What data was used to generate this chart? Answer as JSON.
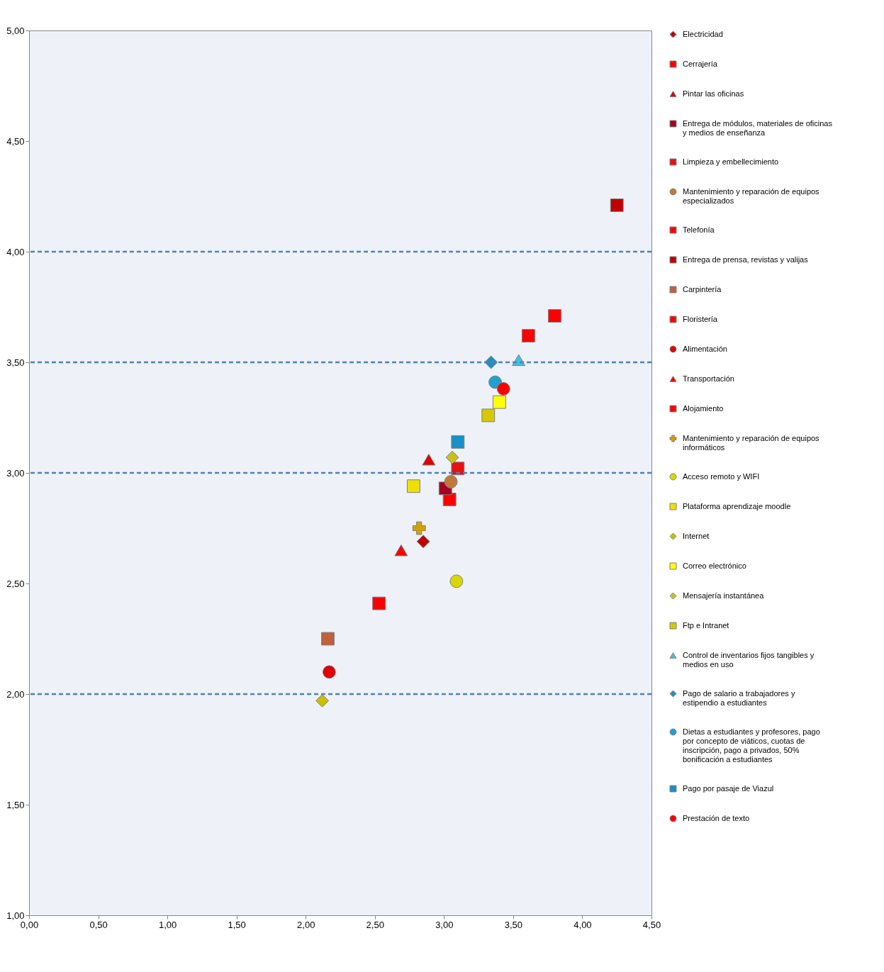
{
  "chart_data": {
    "type": "scatter",
    "xlim": [
      0,
      4.5
    ],
    "ylim": [
      1,
      5
    ],
    "xticks": [
      {
        "value": 0,
        "label": "0,00"
      },
      {
        "value": 0.5,
        "label": "0,50"
      },
      {
        "value": 1,
        "label": "1,00"
      },
      {
        "value": 1.5,
        "label": "1,50"
      },
      {
        "value": 2,
        "label": "2,00"
      },
      {
        "value": 2.5,
        "label": "2,50"
      },
      {
        "value": 3,
        "label": "3,00"
      },
      {
        "value": 3.5,
        "label": "3,50"
      },
      {
        "value": 4,
        "label": "4,00"
      },
      {
        "value": 4.5,
        "label": "4,50"
      }
    ],
    "yticks": [
      {
        "value": 1,
        "label": "1,00"
      },
      {
        "value": 1.5,
        "label": "1,50"
      },
      {
        "value": 2,
        "label": "2,00"
      },
      {
        "value": 2.5,
        "label": "2,50"
      },
      {
        "value": 3,
        "label": "3,00"
      },
      {
        "value": 3.5,
        "label": "3,50"
      },
      {
        "value": 4,
        "label": "4,00"
      },
      {
        "value": 4.5,
        "label": "4,50"
      },
      {
        "value": 5,
        "label": "5,00"
      }
    ],
    "grid": false,
    "legend": "right",
    "ref_lines": [
      {
        "axis": "y",
        "value": 2,
        "color": "#4f81bd",
        "line_style": "dashed"
      },
      {
        "axis": "y",
        "value": 3,
        "color": "#4f81bd",
        "line_style": "dashed"
      },
      {
        "axis": "y",
        "value": 3.5,
        "color": "#4f81bd",
        "line_style": "dashed"
      },
      {
        "axis": "y",
        "value": 4,
        "color": "#4f81bd",
        "line_style": "dashed"
      }
    ],
    "series": [
      {
        "name": "Electricidad",
        "color": "#c00000",
        "marker": "diamond",
        "x": [
          2.85
        ],
        "values": [
          2.69
        ]
      },
      {
        "name": "Cerrajería",
        "color": "#ff0000",
        "marker": "square",
        "x": [
          3.04
        ],
        "values": [
          2.88
        ]
      },
      {
        "name": "Pintar las oficinas",
        "color": "#e00000",
        "marker": "triangle",
        "x": [
          2.89
        ],
        "values": [
          3.06
        ]
      },
      {
        "name": "Entrega de módulos, materiales de oficinas y medios de enseñanza",
        "color": "#a50021",
        "marker": "square",
        "x": [
          3.01
        ],
        "values": [
          2.93
        ]
      },
      {
        "name": "Limpieza y embellecimiento",
        "color": "#e81010",
        "marker": "square",
        "x": [
          3.1
        ],
        "values": [
          3.02
        ]
      },
      {
        "name": "Mantenimiento y reparación de equipos especializados",
        "color": "#c0783c",
        "marker": "circle",
        "x": [
          3.05
        ],
        "values": [
          2.96
        ]
      },
      {
        "name": "Telefonía",
        "color": "#ff0000",
        "marker": "square",
        "x": [
          3.8
        ],
        "values": [
          3.71
        ]
      },
      {
        "name": "Entrega de prensa, revistas y valijas",
        "color": "#c00000",
        "marker": "square",
        "x": [
          4.25
        ],
        "values": [
          4.21
        ]
      },
      {
        "name": "Carpintería",
        "color": "#c0603c",
        "marker": "square",
        "x": [
          2.16
        ],
        "values": [
          2.25
        ]
      },
      {
        "name": "Floristería",
        "color": "#ff0000",
        "marker": "square",
        "x": [
          2.53
        ],
        "values": [
          2.41
        ]
      },
      {
        "name": "Alimentación",
        "color": "#e00000",
        "marker": "circle",
        "x": [
          2.17
        ],
        "values": [
          2.1
        ]
      },
      {
        "name": "Transportación",
        "color": "#ff0000",
        "marker": "triangle",
        "x": [
          2.69
        ],
        "values": [
          2.65
        ]
      },
      {
        "name": "Alojamiento",
        "color": "#ff0000",
        "marker": "square",
        "x": [
          3.61
        ],
        "values": [
          3.62
        ]
      },
      {
        "name": "Mantenimiento y reparación de equipos informáticos",
        "color": "#d4a000",
        "marker": "cross",
        "x": [
          2.82
        ],
        "values": [
          2.75
        ]
      },
      {
        "name": "Acceso remoto y  WIFI",
        "color": "#d8d800",
        "marker": "circle",
        "x": [
          3.09
        ],
        "values": [
          2.51
        ]
      },
      {
        "name": "Plataforma aprendizaje moodle",
        "color": "#f0e000",
        "marker": "square",
        "x": [
          2.78
        ],
        "values": [
          2.94
        ]
      },
      {
        "name": "Internet",
        "color": "#c8c000",
        "marker": "diamond",
        "x": [
          2.12
        ],
        "values": [
          1.97
        ]
      },
      {
        "name": "Correo electrónico",
        "color": "#ffff00",
        "marker": "square",
        "x": [
          3.4
        ],
        "values": [
          3.32
        ]
      },
      {
        "name": "Mensajería instantánea",
        "color": "#c8c020",
        "marker": "diamond",
        "x": [
          3.06
        ],
        "values": [
          3.07
        ]
      },
      {
        "name": "Ftp e Intranet",
        "color": "#d8c800",
        "marker": "square",
        "x": [
          3.32
        ],
        "values": [
          3.26
        ]
      },
      {
        "name": "Control de inventarios fijos tangibles y medios en uso",
        "color": "#40c0e0",
        "marker": "triangle",
        "x": [
          3.54
        ],
        "values": [
          3.51
        ]
      },
      {
        "name": "Pago de salario a trabajadores y estipendio a estudiantes",
        "color": "#2090c0",
        "marker": "diamond",
        "x": [
          3.34
        ],
        "values": [
          3.5
        ]
      },
      {
        "name": "Dietas a estudiantes y profesores, pago por concepto de viáticos, cuotas de inscripción, pago a privados, 50% bonificación a estudiantes",
        "color": "#20a0d0",
        "marker": "circle",
        "x": [
          3.37
        ],
        "values": [
          3.41
        ]
      },
      {
        "name": "Pago por pasaje de Viazul",
        "color": "#1890c8",
        "marker": "square",
        "x": [
          3.1
        ],
        "values": [
          3.14
        ]
      },
      {
        "name": "Prestación de texto",
        "color": "#ff0000",
        "marker": "circle",
        "x": [
          3.43
        ],
        "values": [
          3.38
        ]
      }
    ]
  }
}
